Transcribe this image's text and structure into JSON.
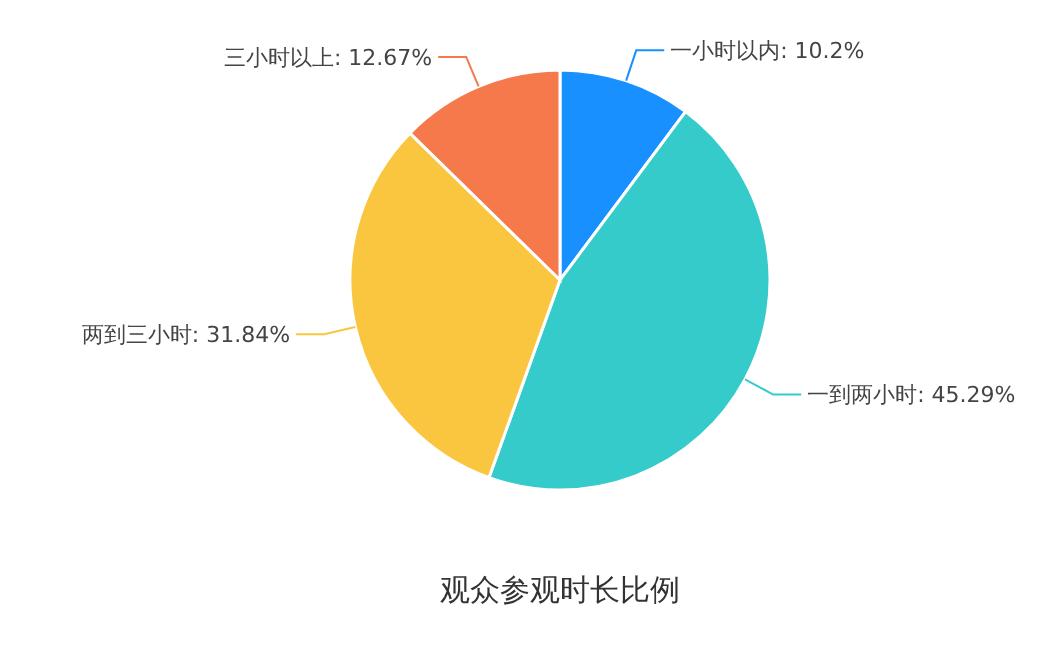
{
  "chart_data": {
    "type": "pie",
    "title": "观众参观时长比例",
    "categories": [
      "一小时以内",
      "一到两小时",
      "两到三小时",
      "三小时以上"
    ],
    "values": [
      10.2,
      45.29,
      31.84,
      12.67
    ],
    "value_labels": [
      "10.2%",
      "45.29%",
      "31.84%",
      "12.67%"
    ],
    "colors": [
      "#1890ff",
      "#36cbcb",
      "#fbc63f",
      "#f5794a"
    ],
    "legend": false
  }
}
